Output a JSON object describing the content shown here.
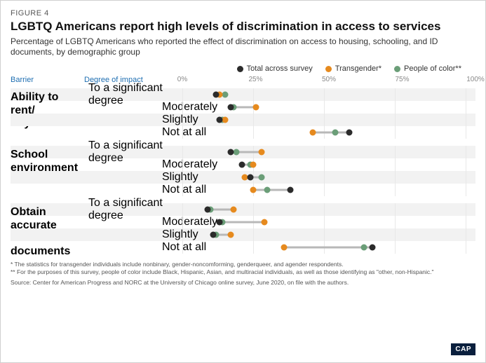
{
  "figure_label": "FIGURE 4",
  "title": "LGBTQ Americans report high levels of discrimination in access to services",
  "subtitle": "Percentage of LGBTQ Americans who reported the effect of discrimination on access to housing, schooling, and ID documents, by demographic group",
  "legend": [
    {
      "label": "Total across survey",
      "color": "#2b2b2b"
    },
    {
      "label": "Transgender*",
      "color": "#e68a1e"
    },
    {
      "label": "People of color**",
      "color": "#6b9e78"
    }
  ],
  "axis": {
    "min": 0,
    "max": 100,
    "ticks": [
      0,
      25,
      50,
      75,
      100
    ]
  },
  "colors": {
    "total": "#2b2b2b",
    "transgender": "#e68a1e",
    "poc": "#6b9e78",
    "connector": "#b8b8b8",
    "grid": "#e8e8e8",
    "shade": "#f2f2f2",
    "header_blue": "#1f6fb2"
  },
  "column_headers": {
    "barrier": "Barrier",
    "degree": "Degree of impact"
  },
  "groups": [
    {
      "barrier": "Ability to rent/\nbuy a home",
      "rows": [
        {
          "label": "To a significant degree",
          "shade": true,
          "total": 12,
          "transgender": 13,
          "poc": 15
        },
        {
          "label": "Moderately",
          "shade": false,
          "total": 17,
          "transgender": 26,
          "poc": 18
        },
        {
          "label": "Slightly",
          "shade": true,
          "total": 13,
          "transgender": 15,
          "poc": 14
        },
        {
          "label": "Not at all",
          "shade": false,
          "total": 59,
          "transgender": 46,
          "poc": 54
        }
      ]
    },
    {
      "barrier": "School\nenvironment",
      "rows": [
        {
          "label": "To a significant degree",
          "shade": true,
          "total": 17,
          "transgender": 28,
          "poc": 19
        },
        {
          "label": "Moderately",
          "shade": false,
          "total": 21,
          "transgender": 25,
          "poc": 24
        },
        {
          "label": "Slightly",
          "shade": true,
          "total": 24,
          "transgender": 22,
          "poc": 28
        },
        {
          "label": "Not at all",
          "shade": false,
          "total": 38,
          "transgender": 25,
          "poc": 30
        }
      ]
    },
    {
      "barrier": "Obtain accurate\nID documents",
      "rows": [
        {
          "label": "To a significant degree",
          "shade": true,
          "total": 9,
          "transgender": 18,
          "poc": 10
        },
        {
          "label": "Moderately",
          "shade": false,
          "total": 13,
          "transgender": 29,
          "poc": 14
        },
        {
          "label": "Slightly",
          "shade": true,
          "total": 11,
          "transgender": 17,
          "poc": 12
        },
        {
          "label": "Not at all",
          "shade": false,
          "total": 67,
          "transgender": 36,
          "poc": 64
        }
      ]
    }
  ],
  "footnotes": [
    "* The statistics for transgender individuals include nonbinary, gender-noncomforming, genderqueer, and agender respondents.",
    "** For the purposes of this survey, people of color include Black, Hispanic, Asian, and multiracial individuals, as well as those identifying as \"other, non-Hispanic.\""
  ],
  "source": "Source: Center for American Progress and NORC at the University of Chicago online survey, June 2020, on file with the authors.",
  "logo": "CAP"
}
